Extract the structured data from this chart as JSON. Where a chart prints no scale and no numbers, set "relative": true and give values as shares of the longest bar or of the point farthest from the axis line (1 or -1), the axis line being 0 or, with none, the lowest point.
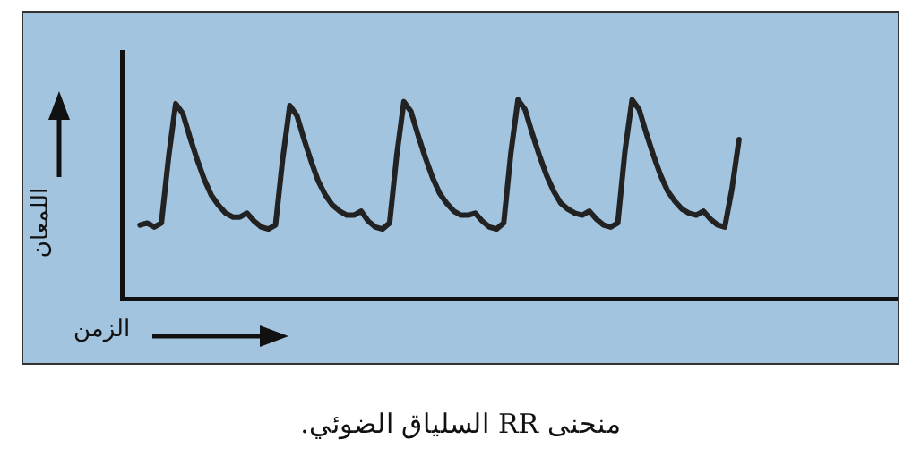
{
  "chart_data": {
    "type": "line",
    "title": "منحنى RR السلياق الضوئي.",
    "xlabel": "الزمن",
    "ylabel": "اللمعان",
    "relative": true,
    "color": "#222222",
    "grid": false,
    "legend": false,
    "marker": "none",
    "line_style": "solid",
    "categories": [
      null,
      null,
      null,
      null,
      null,
      null,
      null,
      null,
      null,
      null,
      null,
      null,
      null,
      null,
      null,
      null,
      null,
      null,
      null,
      null,
      null,
      null,
      null,
      null,
      null,
      null,
      null,
      null,
      null,
      null,
      null,
      null,
      null,
      null,
      null,
      null,
      null,
      null,
      null,
      null,
      null,
      null,
      null,
      null,
      null,
      null,
      null,
      null,
      null,
      null,
      null,
      null,
      null,
      null,
      null,
      null,
      null,
      null,
      null,
      null,
      null,
      null,
      null,
      null,
      null,
      null,
      null,
      null,
      null,
      null,
      null,
      null,
      null,
      null,
      null,
      null,
      null,
      null,
      null,
      null,
      null,
      null,
      null,
      null,
      null
    ],
    "values": [
      0.37,
      0.38,
      0.36,
      0.38,
      0.71,
      0.98,
      0.93,
      0.81,
      0.7,
      0.6,
      0.52,
      0.47,
      0.43,
      0.41,
      0.41,
      0.43,
      0.39,
      0.36,
      0.35,
      0.37,
      0.7,
      0.97,
      0.92,
      0.8,
      0.69,
      0.59,
      0.52,
      0.47,
      0.44,
      0.42,
      0.42,
      0.44,
      0.39,
      0.36,
      0.35,
      0.38,
      0.72,
      0.99,
      0.94,
      0.82,
      0.71,
      0.61,
      0.53,
      0.48,
      0.44,
      0.42,
      0.42,
      0.43,
      0.39,
      0.36,
      0.35,
      0.38,
      0.73,
      1.0,
      0.95,
      0.83,
      0.72,
      0.62,
      0.54,
      0.48,
      0.45,
      0.43,
      0.42,
      0.44,
      0.4,
      0.37,
      0.36,
      0.38,
      0.74,
      1.0,
      0.95,
      0.83,
      0.72,
      0.62,
      0.54,
      0.49,
      0.45,
      0.43,
      0.42,
      0.44,
      0.4,
      0.37,
      0.36,
      0.55,
      0.8
    ]
  }
}
